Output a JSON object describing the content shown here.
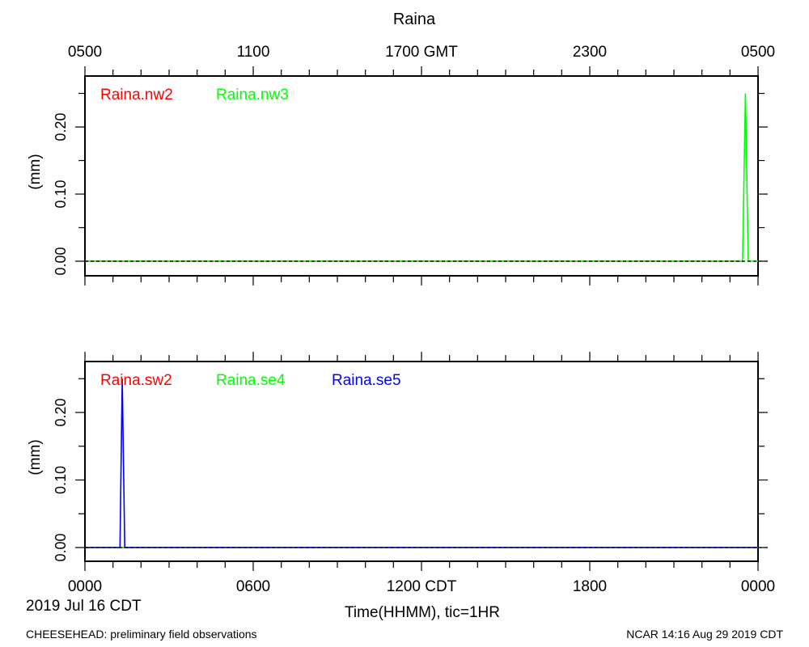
{
  "title": "Raina",
  "top_axis_ticks": [
    "0500",
    "1100",
    "1700 GMT",
    "2300",
    "0500"
  ],
  "bottom_axis_ticks": [
    "0000",
    "0600",
    "1200 CDT",
    "1800",
    "0000"
  ],
  "date_label": "2019 Jul 16 CDT",
  "xlabel": "Time(HHMM), tic=1HR",
  "footer_left": "CHEESEHEAD: preliminary field observations",
  "footer_right": "NCAR 14:16 Aug 29 2019 CDT",
  "colors": {
    "red": "#ff0000",
    "green": "#00ff00",
    "blue": "#0000ff",
    "axis": "#000000"
  },
  "chart_data": [
    {
      "type": "line",
      "ylabel": "(mm)",
      "y_ticks": [
        "0.00",
        "0.10",
        "0.20"
      ],
      "ylim": [
        -0.02,
        0.27
      ],
      "xlim_hours": [
        0,
        24
      ],
      "zero_line": "dashed",
      "series": [
        {
          "name": "Raina.nw2",
          "color": "#ff0000",
          "x": [
            0,
            23.5
          ],
          "y": [
            0,
            0
          ]
        },
        {
          "name": "Raina.nw3",
          "color": "#00ff00",
          "x": [
            0,
            23.45,
            23.55,
            23.65,
            24
          ],
          "y": [
            0,
            0,
            0.25,
            0,
            0
          ]
        }
      ]
    },
    {
      "type": "line",
      "ylabel": "(mm)",
      "y_ticks": [
        "0.00",
        "0.10",
        "0.20"
      ],
      "ylim": [
        -0.02,
        0.27
      ],
      "xlim_hours": [
        0,
        24
      ],
      "zero_line": "dashed",
      "series": [
        {
          "name": "Raina.sw2",
          "color": "#ff0000",
          "x": [
            0,
            24
          ],
          "y": [
            0,
            0
          ]
        },
        {
          "name": "Raina.se4",
          "color": "#00ff00",
          "x": [
            0,
            24
          ],
          "y": [
            0,
            0
          ]
        },
        {
          "name": "Raina.se5",
          "color": "#0000ff",
          "x": [
            0,
            1.25,
            1.33,
            1.42,
            24
          ],
          "y": [
            0,
            0,
            0.25,
            0,
            0
          ]
        }
      ]
    }
  ]
}
